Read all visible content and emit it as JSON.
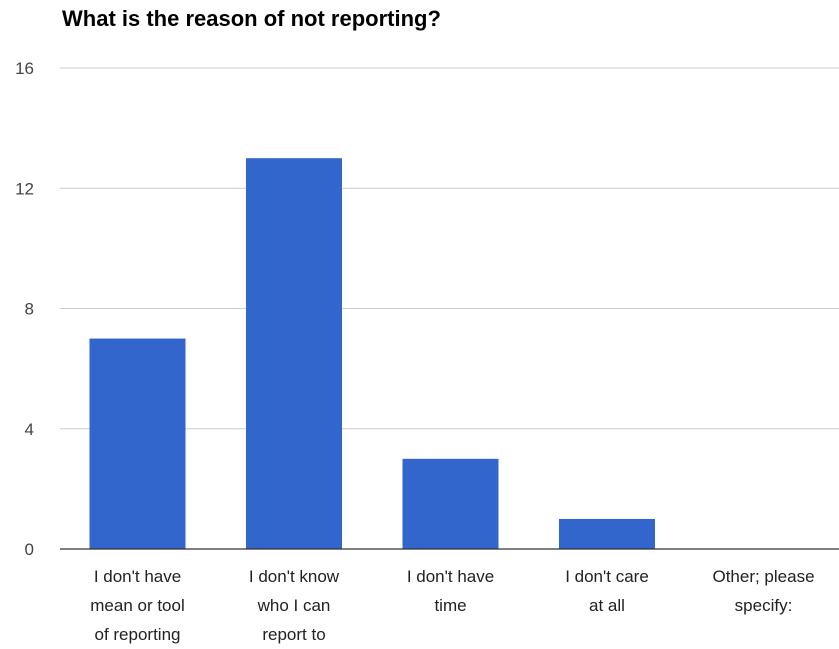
{
  "chart_data": {
    "type": "bar",
    "title": "What is the reason of not reporting?",
    "xlabel": "",
    "ylabel": "",
    "categories": [
      [
        "I don't have",
        "mean or tool",
        "of reporting"
      ],
      [
        "I don't know",
        "who I can",
        "report to"
      ],
      [
        "I don't have",
        "time"
      ],
      [
        "I don't care",
        "at all"
      ],
      [
        "Other; please",
        "specify:"
      ]
    ],
    "values": [
      7,
      13,
      3,
      1,
      0
    ],
    "ylim": [
      0,
      16
    ],
    "yticks": [
      "0",
      "4",
      "8",
      "12",
      "16"
    ],
    "grid": true,
    "legend": "none",
    "colors": {
      "bar": "#3366cc",
      "grid": "#cccccc",
      "baseline": "#333333"
    }
  }
}
